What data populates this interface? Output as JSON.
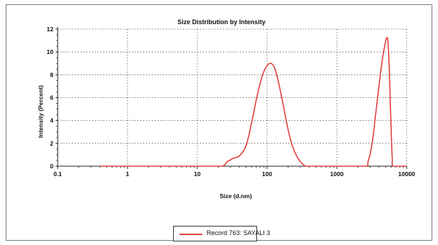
{
  "chart_data": {
    "type": "line",
    "title": "Size Distribution by Intensity",
    "xlabel": "Size (d.nm)",
    "ylabel": "Intensity (Percent)",
    "x_scale": "log",
    "xlim": [
      0.1,
      10000
    ],
    "ylim": [
      0,
      12
    ],
    "x_ticks": [
      0.1,
      1,
      10,
      100,
      1000,
      10000
    ],
    "x_tick_labels": [
      "0.1",
      "1",
      "10",
      "100",
      "1000",
      "10000"
    ],
    "y_ticks": [
      0,
      2,
      4,
      6,
      8,
      10,
      12
    ],
    "y_tick_labels": [
      "0",
      "2",
      "4",
      "6",
      "8",
      "10",
      "12"
    ],
    "grid": true,
    "legend_position": "bottom-center",
    "series": [
      {
        "name": "Record 763: SAYALI 3",
        "color": "#e04040",
        "x": [
          0.4,
          1,
          10,
          22,
          27,
          33,
          40,
          50,
          60,
          70,
          80,
          90,
          100,
          110,
          120,
          130,
          140,
          160,
          180,
          200,
          230,
          270,
          320,
          370,
          450,
          1000,
          2500,
          2800,
          3200,
          3700,
          4300,
          4800,
          5300,
          5600,
          5900,
          6200,
          6500,
          10000
        ],
        "y": [
          0,
          0,
          0,
          0,
          0.4,
          0.7,
          0.9,
          1.8,
          3.8,
          5.8,
          7.3,
          8.3,
          8.8,
          9.0,
          8.9,
          8.5,
          7.8,
          6.2,
          4.6,
          3.2,
          1.8,
          0.8,
          0.2,
          0,
          0,
          0,
          0,
          0.4,
          2.0,
          5.2,
          8.5,
          10.4,
          11.2,
          9.0,
          4.5,
          0.8,
          0,
          0
        ]
      }
    ]
  }
}
